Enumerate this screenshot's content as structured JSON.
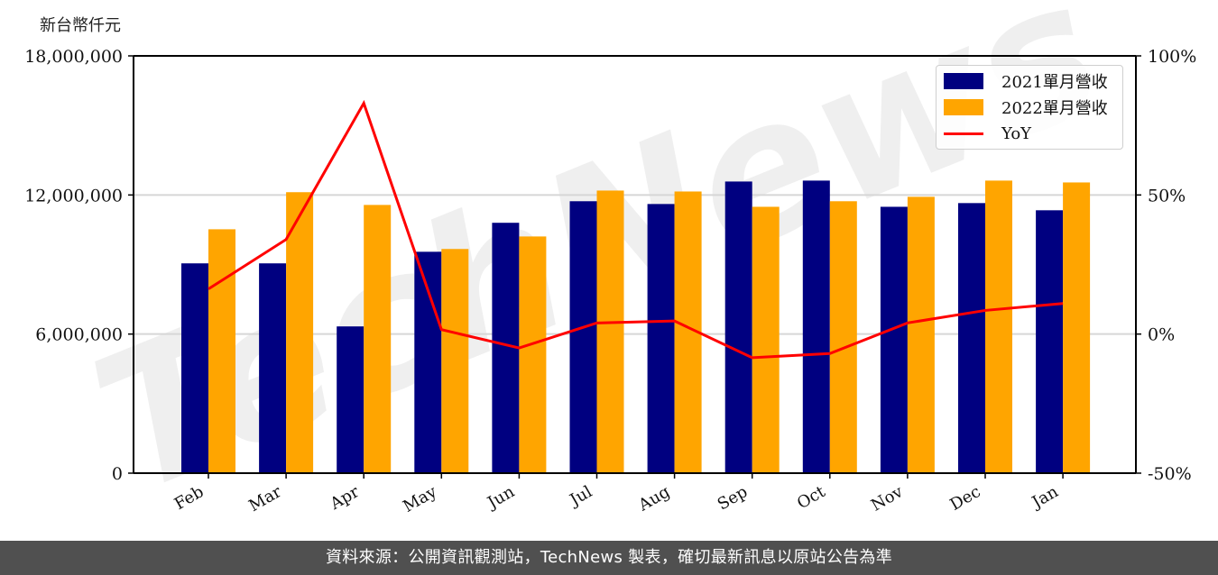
{
  "chart_data": {
    "type": "bar",
    "title": "",
    "unit_label": "新台幣仟元",
    "xlabel": "",
    "ylabel": "新台幣仟元",
    "categories": [
      "Feb",
      "Mar",
      "Apr",
      "May",
      "Jun",
      "Jul",
      "Aug",
      "Sep",
      "Oct",
      "Nov",
      "Dec",
      "Jan"
    ],
    "series": [
      {
        "name": "2021單月營收",
        "type": "bar",
        "axis": "left",
        "color": "#000080",
        "values": [
          9050000,
          9050000,
          6330000,
          9550000,
          10800000,
          11730000,
          11610000,
          12580000,
          12620000,
          11490000,
          11650000,
          11340000
        ]
      },
      {
        "name": "2022單月營收",
        "type": "bar",
        "axis": "left",
        "color": "#FFA500",
        "values": [
          10520000,
          12120000,
          11570000,
          9670000,
          10210000,
          12190000,
          12150000,
          11490000,
          11730000,
          11920000,
          12620000,
          12540000
        ]
      },
      {
        "name": "YoY",
        "type": "line",
        "axis": "right",
        "color": "#FF0000",
        "values": [
          16.2,
          34.0,
          83.0,
          1.6,
          -5.0,
          4.0,
          4.7,
          -8.5,
          -7.0,
          4.0,
          8.5,
          11.0
        ]
      }
    ],
    "ylim": [
      0,
      18000000
    ],
    "y_ticks": [
      0,
      6000000,
      12000000,
      18000000
    ],
    "y_tick_labels": [
      "0",
      "6,000,000",
      "12,000,000",
      "18,000,000"
    ],
    "y2lim": [
      -50,
      100
    ],
    "y2_ticks": [
      -50,
      0,
      50,
      100
    ],
    "y2_tick_labels": [
      "-50%",
      "0%",
      "50%",
      "100%"
    ],
    "grid": "horizontal",
    "legend_position": "upper right",
    "watermark": "TechNews"
  },
  "unit_label": "新台幣仟元",
  "legend": {
    "items": [
      {
        "label": "2021單月營收",
        "color": "#000080",
        "kind": "bar"
      },
      {
        "label": "2022單月營收",
        "color": "#FFA500",
        "kind": "bar"
      },
      {
        "label": "YoY",
        "color": "#FF0000",
        "kind": "line"
      }
    ]
  },
  "footer": {
    "text": "資料來源：公開資訊觀測站，TechNews 製表，確切最新訊息以原站公告為準"
  }
}
